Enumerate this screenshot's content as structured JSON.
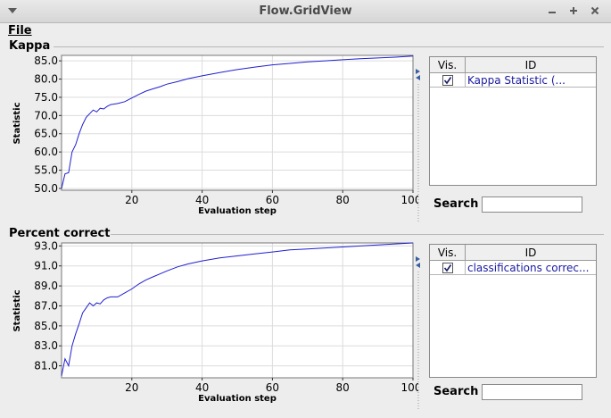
{
  "window": {
    "title": "Flow.GridView"
  },
  "menu": {
    "file": "File"
  },
  "panels": [
    {
      "title": "Kappa",
      "search_label": "Search",
      "search_value": "",
      "table": {
        "headers": {
          "vis": "Vis.",
          "id": "ID"
        },
        "rows": [
          {
            "visible": true,
            "id": "Kappa Statistic (..."
          }
        ]
      }
    },
    {
      "title": "Percent correct",
      "search_label": "Search",
      "search_value": "",
      "table": {
        "headers": {
          "vis": "Vis.",
          "id": "ID"
        },
        "rows": [
          {
            "visible": true,
            "id": "classifications correc..."
          }
        ]
      }
    }
  ],
  "colors": {
    "line": "#1f1fd0",
    "background": "#ededed"
  },
  "chart_data": [
    {
      "type": "line",
      "xlabel": "Evaluation step",
      "ylabel": "Statistic",
      "xlim": [
        0,
        100
      ],
      "ylim": [
        49.5,
        86.5
      ],
      "x_ticks": [
        20,
        40,
        60,
        80,
        100
      ],
      "y_ticks": [
        50.0,
        55.0,
        60.0,
        65.0,
        70.0,
        75.0,
        80.0,
        85.0
      ],
      "grid": true,
      "series": [
        {
          "color": "#1f1fd0",
          "x": [
            0,
            1,
            2,
            3,
            4,
            5,
            6,
            7,
            8,
            9,
            10,
            11,
            12,
            13,
            14,
            16,
            18,
            20,
            22,
            24,
            26,
            28,
            30,
            33,
            36,
            40,
            45,
            50,
            55,
            60,
            65,
            70,
            75,
            80,
            85,
            90,
            95,
            100
          ],
          "y": [
            50.0,
            54.0,
            54.3,
            60.0,
            62.0,
            65.0,
            67.5,
            69.5,
            70.5,
            71.5,
            71.0,
            72.0,
            71.8,
            72.5,
            73.0,
            73.3,
            73.8,
            74.8,
            75.8,
            76.7,
            77.3,
            77.9,
            78.6,
            79.3,
            80.1,
            80.9,
            81.8,
            82.6,
            83.3,
            83.9,
            84.3,
            84.7,
            85.0,
            85.3,
            85.6,
            85.8,
            86.0,
            86.3
          ]
        }
      ]
    },
    {
      "type": "line",
      "xlabel": "Evaluation step",
      "ylabel": "Statistic",
      "xlim": [
        0,
        100
      ],
      "ylim": [
        79.8,
        93.3
      ],
      "x_ticks": [
        20,
        40,
        60,
        80,
        100
      ],
      "y_ticks": [
        81.0,
        83.0,
        85.0,
        87.0,
        89.0,
        91.0,
        93.0
      ],
      "grid": true,
      "series": [
        {
          "color": "#1f1fd0",
          "x": [
            0,
            1,
            2,
            3,
            4,
            5,
            6,
            7,
            8,
            9,
            10,
            11,
            12,
            13,
            14,
            16,
            18,
            20,
            22,
            24,
            26,
            28,
            30,
            33,
            36,
            40,
            45,
            50,
            55,
            60,
            65,
            70,
            75,
            80,
            85,
            90,
            95,
            100
          ],
          "y": [
            80.0,
            81.7,
            81.0,
            83.0,
            84.2,
            85.2,
            86.3,
            86.8,
            87.3,
            87.0,
            87.3,
            87.2,
            87.6,
            87.8,
            87.9,
            87.9,
            88.3,
            88.7,
            89.2,
            89.6,
            89.9,
            90.2,
            90.5,
            90.9,
            91.2,
            91.5,
            91.8,
            92.0,
            92.2,
            92.4,
            92.6,
            92.7,
            92.8,
            92.9,
            93.0,
            93.1,
            93.2,
            93.3
          ]
        }
      ]
    }
  ]
}
